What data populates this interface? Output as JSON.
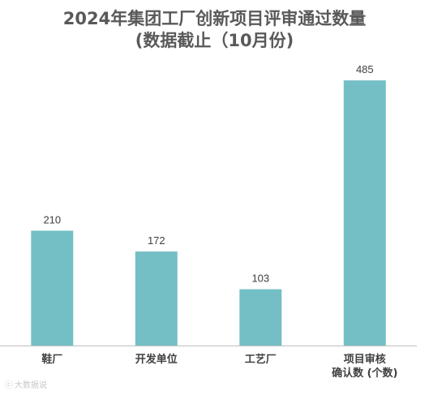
{
  "chart_data": {
    "type": "bar",
    "title": "2024年集团工厂创新项目评审通过数量",
    "subtitle": "(数据截止（10月份)",
    "categories": [
      [
        "鞋厂"
      ],
      [
        "开发单位"
      ],
      [
        "工艺厂"
      ],
      [
        "项目审核",
        "确认数 (个数)"
      ]
    ],
    "values": [
      210,
      172,
      103,
      485
    ],
    "data_labels": [
      "210",
      "172",
      "103",
      "485"
    ],
    "ylim": [
      0,
      540
    ],
    "grid": false,
    "legend": "none",
    "bar_color": "#74bfc5",
    "axis_color": "#bfbfbf",
    "label_color": "#404040"
  },
  "watermark": {
    "icon": "logo-icon",
    "text": "大数据说"
  }
}
